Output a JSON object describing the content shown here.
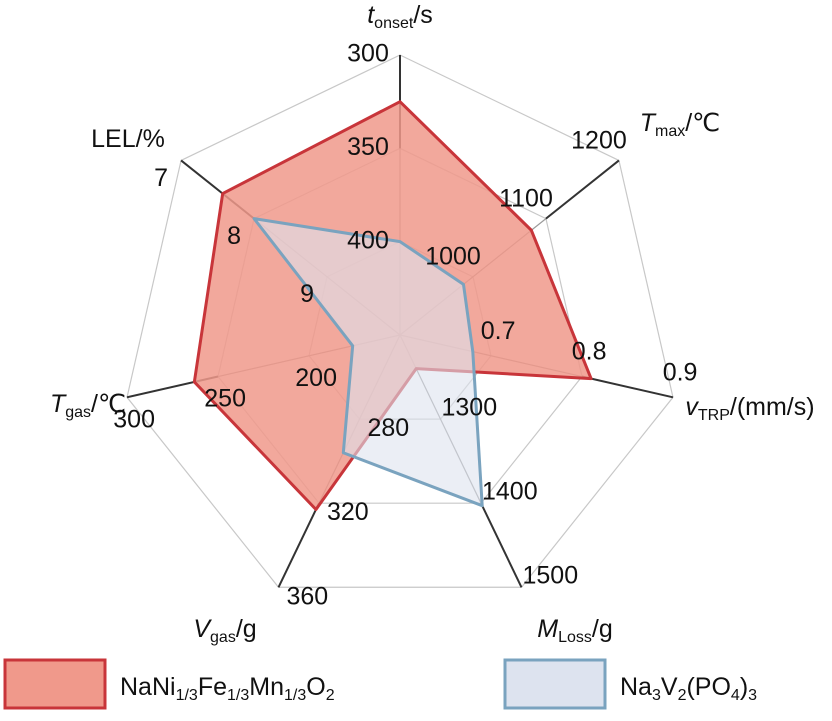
{
  "chart_data": {
    "type": "radar",
    "axes": [
      {
        "label": [
          "t",
          "onset",
          "/s"
        ],
        "lim": [
          450,
          300
        ],
        "ticks": [
          400,
          350,
          300
        ]
      },
      {
        "label": [
          "T",
          "max",
          "/℃"
        ],
        "lim": [
          900,
          1200
        ],
        "ticks": [
          1000,
          1100,
          1200
        ]
      },
      {
        "label": [
          "v",
          "TRP",
          "/(mm/s)"
        ],
        "lim": [
          0.6,
          0.9
        ],
        "ticks": [
          0.7,
          0.8,
          0.9
        ]
      },
      {
        "label": [
          "M",
          "Loss",
          "/g"
        ],
        "lim": [
          1200,
          1500
        ],
        "ticks": [
          1300,
          1400,
          1500
        ]
      },
      {
        "label": [
          "V",
          "gas",
          "/g"
        ],
        "lim": [
          240,
          360
        ],
        "ticks": [
          280,
          320,
          360
        ]
      },
      {
        "label": [
          "T",
          "gas",
          "/℃"
        ],
        "lim": [
          150,
          300
        ],
        "ticks": [
          200,
          250,
          300
        ]
      },
      {
        "label": [
          "LEL/%"
        ],
        "lim": [
          10,
          7
        ],
        "ticks": [
          9,
          8,
          7
        ]
      }
    ],
    "series": [
      {
        "name": [
          "NaNi",
          "1/3",
          "Fe",
          "1/3",
          "Mn",
          "1/3",
          "O",
          "2"
        ],
        "color": "#c8353a",
        "fill": "#f0998b",
        "values": [
          325,
          1080,
          0.81,
          1240,
          323,
          263,
          7.57
        ]
      },
      {
        "name": [
          "Na",
          "3",
          "V",
          "2",
          "(PO",
          "4",
          ")",
          "3"
        ],
        "color": "#7aa3bf",
        "fill": "#dde3ef",
        "values": [
          400,
          987,
          0.68,
          1403,
          296,
          176,
          8
        ]
      }
    ]
  }
}
